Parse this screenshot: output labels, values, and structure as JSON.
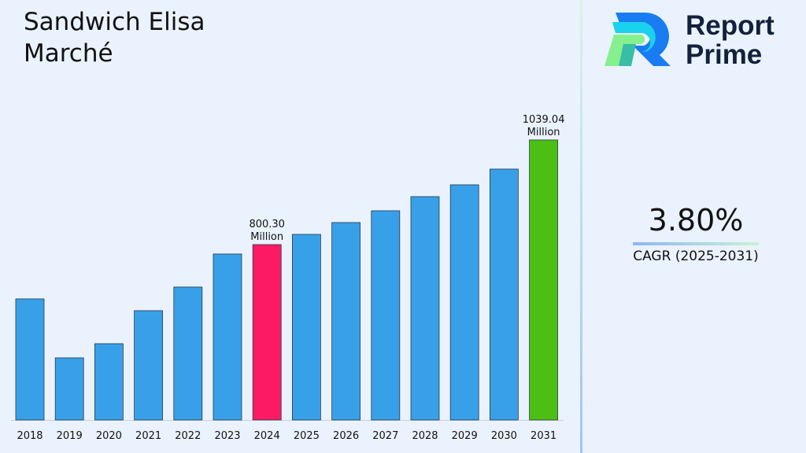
{
  "title": "Sandwich Elisa Marché",
  "brand": {
    "line1": "Report",
    "line2": "Prime"
  },
  "cagr": {
    "value": "3.80%",
    "label": "CAGR (2025-2031)"
  },
  "chart_data": {
    "type": "bar",
    "categories": [
      "2018",
      "2019",
      "2020",
      "2021",
      "2022",
      "2023",
      "2024",
      "2025",
      "2026",
      "2027",
      "2028",
      "2029",
      "2030",
      "2031"
    ],
    "values": [
      676.4,
      541.8,
      574.1,
      649.5,
      703.4,
      778.8,
      800.3,
      823.6,
      850.6,
      877.5,
      909.8,
      936.7,
      972.6,
      1039.04
    ],
    "ylim": [
      400,
      1100
    ],
    "grid": false,
    "data_labels": {
      "6": [
        "800.30",
        "Million"
      ],
      "13": [
        "1039.04",
        "Million"
      ]
    },
    "colors": {
      "default": "#38a0e8",
      "highlight_2024": "#fc1a64",
      "highlight_2031": "#4cbf14"
    }
  }
}
